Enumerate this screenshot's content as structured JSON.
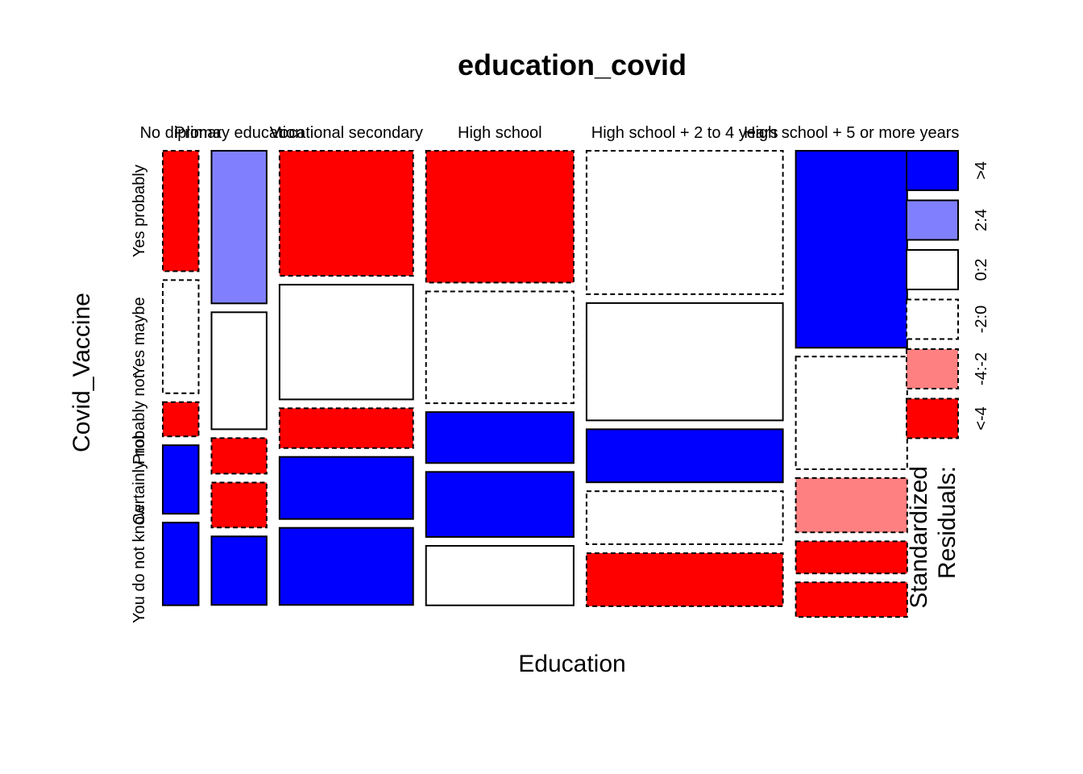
{
  "chart_data": {
    "type": "mosaic",
    "title": "education_covid",
    "xlabel": "Education",
    "ylabel": "Covid_Vaccine",
    "columns": [
      {
        "label": "No diploma",
        "width": 0.0592,
        "cells": [
          {
            "level": "Yes probably",
            "proportion": 0.2813,
            "residual_class": "<-4"
          },
          {
            "level": "Yes maybe",
            "proportion": 0.2643,
            "residual_class": "-2:0"
          },
          {
            "level": "Probably not",
            "proportion": 0.08,
            "residual_class": "<-4"
          },
          {
            "level": "Certainly not",
            "proportion": 0.16,
            "residual_class": ">4"
          },
          {
            "level": "You do not know",
            "proportion": 0.193,
            "residual_class": ">4"
          }
        ]
      },
      {
        "label": "Primary education",
        "width": 0.0911,
        "cells": [
          {
            "level": "Yes probably",
            "proportion": 0.3565,
            "residual_class": "2:4"
          },
          {
            "level": "Yes maybe",
            "proportion": 0.2733,
            "residual_class": "0:2"
          },
          {
            "level": "Probably not",
            "proportion": 0.083,
            "residual_class": "<-4"
          },
          {
            "level": "Certainly not",
            "proportion": 0.105,
            "residual_class": "<-4"
          },
          {
            "level": "You do not know",
            "proportion": 0.16,
            "residual_class": ">4"
          }
        ]
      },
      {
        "label": "Vocational secondary",
        "width": 0.2208,
        "cells": [
          {
            "level": "Yes probably",
            "proportion": 0.292,
            "residual_class": "<-4"
          },
          {
            "level": "Yes maybe",
            "proportion": 0.268,
            "residual_class": "0:2"
          },
          {
            "level": "Probably not",
            "proportion": 0.093,
            "residual_class": "<-4"
          },
          {
            "level": "Certainly not",
            "proportion": 0.145,
            "residual_class": ">4"
          },
          {
            "level": "You do not know",
            "proportion": 0.18,
            "residual_class": ">4"
          }
        ]
      },
      {
        "label": "High school",
        "width": 0.2439,
        "cells": [
          {
            "level": "Yes probably",
            "proportion": 0.308,
            "residual_class": "<-4"
          },
          {
            "level": "Yes maybe",
            "proportion": 0.261,
            "residual_class": "-2:0"
          },
          {
            "level": "Probably not",
            "proportion": 0.119,
            "residual_class": ">4"
          },
          {
            "level": "Certainly not",
            "proportion": 0.152,
            "residual_class": ">4"
          },
          {
            "level": "You do not know",
            "proportion": 0.139,
            "residual_class": "0:2"
          }
        ]
      },
      {
        "label": "High school + 2 to 4 years",
        "width": 0.3245,
        "cells": [
          {
            "level": "Yes probably",
            "proportion": 0.335,
            "residual_class": "-2:0"
          },
          {
            "level": "Yes maybe",
            "proportion": 0.274,
            "residual_class": "0:2"
          },
          {
            "level": "Probably not",
            "proportion": 0.124,
            "residual_class": ">4"
          },
          {
            "level": "Certainly not",
            "proportion": 0.124,
            "residual_class": "-2:0"
          },
          {
            "level": "You do not know",
            "proportion": 0.124,
            "residual_class": "<-4"
          }
        ]
      },
      {
        "label": "High school + 5 or more years",
        "width": 0.184,
        "cells": [
          {
            "level": "Yes probably",
            "proportion": 0.46,
            "residual_class": ">4"
          },
          {
            "level": "Yes maybe",
            "proportion": 0.263,
            "residual_class": "-2:0"
          },
          {
            "level": "Probably not",
            "proportion": 0.127,
            "residual_class": "-4:-2"
          },
          {
            "level": "Certainly not",
            "proportion": 0.075,
            "residual_class": "<-4"
          },
          {
            "level": "You do not know",
            "proportion": 0.081,
            "residual_class": "<-4"
          }
        ]
      }
    ],
    "row_levels": [
      "Yes probably",
      "Yes maybe",
      "Probably not",
      "Certainly not",
      "You do not know"
    ],
    "legend": {
      "title_line1": "Standardized",
      "title_line2": "Residuals:",
      "placement": "right",
      "entries": [
        {
          "label": ">4",
          "fill": "#0000ff",
          "dashed": false
        },
        {
          "label": "2:4",
          "fill": "#8080ff",
          "dashed": false
        },
        {
          "label": "0:2",
          "fill": "#ffffff",
          "dashed": false
        },
        {
          "label": "-2:0",
          "fill": "#ffffff",
          "dashed": true
        },
        {
          "label": "-4:-2",
          "fill": "#ff8080",
          "dashed": true
        },
        {
          "label": "<-4",
          "fill": "#ff0000",
          "dashed": true
        }
      ]
    }
  }
}
